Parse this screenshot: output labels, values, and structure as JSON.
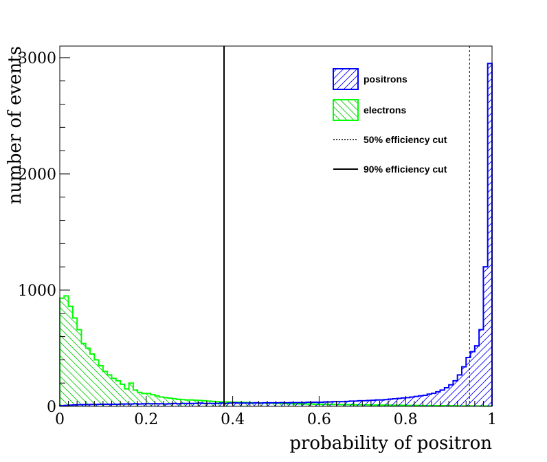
{
  "chart_data": {
    "type": "histogram",
    "xlabel": "probability of positron",
    "ylabel": "number of events",
    "xlim": [
      0,
      1
    ],
    "ylim": [
      0,
      3100
    ],
    "bin_width": 0.01,
    "x_ticks": [
      0,
      0.2,
      0.4,
      0.6,
      0.8,
      1
    ],
    "x_tick_labels": [
      "0",
      "0.2",
      "0.4",
      "0.6",
      "0.8",
      "1"
    ],
    "y_ticks": [
      0,
      1000,
      2000,
      3000
    ],
    "y_tick_labels": [
      "0",
      "1000",
      "2000",
      "3000"
    ],
    "series": [
      {
        "name": "positrons",
        "color": "#0000ff",
        "fill": "hatched-forward",
        "values": [
          5,
          8,
          10,
          12,
          14,
          15,
          15,
          16,
          16,
          18,
          18,
          18,
          18,
          18,
          20,
          20,
          20,
          22,
          20,
          22,
          22,
          22,
          22,
          22,
          20,
          22,
          25,
          22,
          25,
          25,
          25,
          25,
          28,
          25,
          25,
          25,
          25,
          28,
          25,
          28,
          30,
          28,
          28,
          28,
          28,
          30,
          28,
          30,
          30,
          30,
          30,
          32,
          30,
          32,
          32,
          32,
          32,
          35,
          35,
          35,
          35,
          38,
          38,
          40,
          40,
          40,
          42,
          45,
          45,
          48,
          48,
          50,
          52,
          55,
          55,
          58,
          62,
          65,
          68,
          72,
          75,
          80,
          85,
          90,
          95,
          105,
          112,
          125,
          140,
          160,
          185,
          220,
          270,
          340,
          420,
          470,
          520,
          660,
          1200,
          2950
        ]
      },
      {
        "name": "electrons",
        "color": "#00ff00",
        "fill": "hatched-backward",
        "values": [
          930,
          950,
          860,
          760,
          660,
          540,
          500,
          450,
          400,
          350,
          300,
          270,
          240,
          220,
          190,
          150,
          200,
          140,
          120,
          110,
          110,
          100,
          90,
          80,
          75,
          70,
          65,
          60,
          58,
          55,
          55,
          52,
          50,
          48,
          45,
          42,
          40,
          38,
          38,
          36,
          35,
          34,
          33,
          32,
          30,
          30,
          29,
          28,
          27,
          26,
          25,
          24,
          23,
          22,
          22,
          21,
          20,
          20,
          19,
          18,
          18,
          17,
          16,
          16,
          15,
          15,
          14,
          14,
          13,
          13,
          12,
          12,
          11,
          11,
          10,
          10,
          10,
          9,
          9,
          9,
          8,
          8,
          8,
          7,
          7,
          7,
          6,
          6,
          6,
          5,
          5,
          5,
          4,
          4,
          4,
          3,
          3,
          3,
          2,
          2
        ]
      }
    ],
    "cuts": [
      {
        "name": "50% efficiency cut",
        "x": 0.948,
        "style": "dotted"
      },
      {
        "name": "90% efficiency cut",
        "x": 0.38,
        "style": "solid"
      }
    ],
    "legend": {
      "position": "top-right",
      "entries": [
        {
          "label": "positrons",
          "kind": "box",
          "color": "#0000ff",
          "hatch": "forward"
        },
        {
          "label": "electrons",
          "kind": "box",
          "color": "#00ff00",
          "hatch": "backward"
        },
        {
          "label": "50% efficiency cut",
          "kind": "line",
          "dash": "dotted"
        },
        {
          "label": "90% efficiency cut",
          "kind": "line",
          "dash": "solid"
        }
      ]
    }
  }
}
